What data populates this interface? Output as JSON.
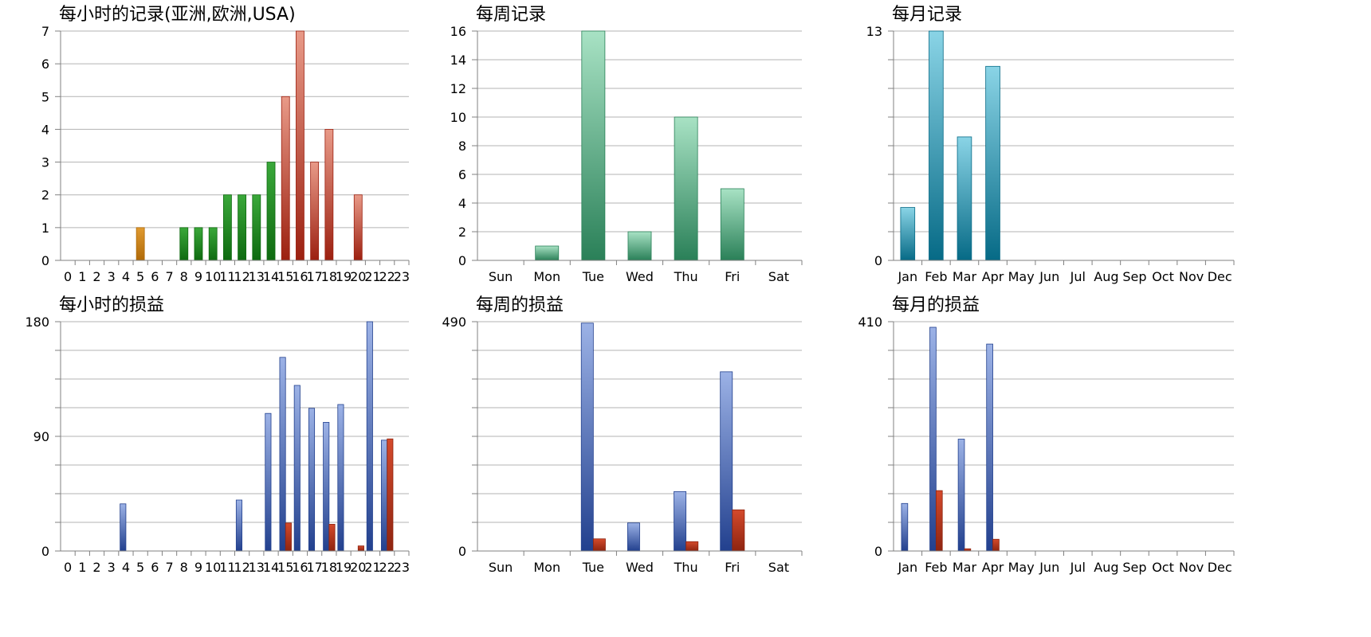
{
  "colors": {
    "grid": "#b3b3b3",
    "axis": "#808080",
    "orange": "#c07a10",
    "green": "#1b7d1b",
    "red": "#b23a28",
    "teal_green": "#2e8b5e",
    "teal": "#1f8ba6",
    "blue": "#3a5aa8",
    "dark_red": "#a8301c"
  },
  "chart_data": [
    {
      "type": "bar",
      "title": "每小时的记录(亚洲,欧洲,USA)",
      "categories": [
        "0",
        "1",
        "2",
        "3",
        "4",
        "5",
        "6",
        "7",
        "8",
        "9",
        "10",
        "11",
        "12",
        "13",
        "14",
        "15",
        "16",
        "17",
        "18",
        "19",
        "20",
        "21",
        "22",
        "23"
      ],
      "values": [
        0,
        0,
        0,
        0,
        0,
        1,
        0,
        0,
        1,
        1,
        1,
        2,
        2,
        2,
        3,
        5,
        7,
        3,
        4,
        0,
        2,
        0,
        0,
        0
      ],
      "bar_regions": [
        "orange",
        "orange",
        "orange",
        "orange",
        "orange",
        "orange",
        "orange",
        "orange",
        "green",
        "green",
        "green",
        "green",
        "green",
        "green",
        "green",
        "red",
        "red",
        "red",
        "red",
        "red",
        "red",
        "red",
        "red",
        "red"
      ],
      "ylim": [
        0,
        7
      ],
      "yticks": [
        "0",
        "1",
        "2",
        "3",
        "4",
        "5",
        "6",
        "7"
      ],
      "grid": true
    },
    {
      "type": "bar",
      "title": "每周记录",
      "categories": [
        "Sun",
        "Mon",
        "Tue",
        "Wed",
        "Thu",
        "Fri",
        "Sat"
      ],
      "values": [
        0,
        1,
        16,
        2,
        10,
        5,
        0
      ],
      "ylim": [
        0,
        16
      ],
      "yticks": [
        "0",
        "2",
        "4",
        "6",
        "8",
        "10",
        "12",
        "14",
        "16"
      ],
      "grid": true
    },
    {
      "type": "bar",
      "title": "每月记录",
      "categories": [
        "Jan",
        "Feb",
        "Mar",
        "Apr",
        "May",
        "Jun",
        "Jul",
        "Aug",
        "Sep",
        "Oct",
        "Nov",
        "Dec"
      ],
      "values": [
        3,
        13,
        7,
        11,
        0,
        0,
        0,
        0,
        0,
        0,
        0,
        0
      ],
      "ylim": [
        0,
        13
      ],
      "yticks": [
        "0",
        "",
        "",
        "",
        "",
        "",
        "",
        "",
        "13"
      ],
      "grid": true
    },
    {
      "type": "bar",
      "title": "每小时的损益",
      "categories": [
        "0",
        "1",
        "2",
        "3",
        "4",
        "5",
        "6",
        "7",
        "8",
        "9",
        "10",
        "11",
        "12",
        "13",
        "14",
        "15",
        "16",
        "17",
        "18",
        "19",
        "20",
        "21",
        "22",
        "23"
      ],
      "series": [
        {
          "values": [
            0,
            0,
            0,
            0,
            37,
            0,
            0,
            0,
            0,
            0,
            0,
            0,
            40,
            0,
            108,
            152,
            130,
            112,
            101,
            115,
            0,
            180,
            87,
            0
          ]
        },
        {
          "values": [
            0,
            0,
            0,
            0,
            0,
            0,
            0,
            0,
            0,
            0,
            0,
            0,
            0,
            0,
            0,
            22,
            0,
            0,
            21,
            0,
            4,
            0,
            88,
            0
          ]
        }
      ],
      "ylim": [
        0,
        180
      ],
      "yticks": [
        "0",
        "",
        "",
        "",
        "90",
        "",
        "",
        "",
        "180"
      ],
      "grid": true
    },
    {
      "type": "bar",
      "title": "每周的损益",
      "categories": [
        "Sun",
        "Mon",
        "Tue",
        "Wed",
        "Thu",
        "Fri",
        "Sat"
      ],
      "series": [
        {
          "values": [
            0,
            0,
            487,
            60,
            127,
            383,
            0
          ]
        },
        {
          "values": [
            0,
            0,
            26,
            0,
            20,
            88,
            0
          ]
        }
      ],
      "ylim": [
        0,
        490
      ],
      "yticks": [
        "0",
        "",
        "",
        "",
        "",
        "",
        "",
        "",
        "490"
      ],
      "grid": true
    },
    {
      "type": "bar",
      "title": "每月的损益",
      "categories": [
        "Jan",
        "Feb",
        "Mar",
        "Apr",
        "May",
        "Jun",
        "Jul",
        "Aug",
        "Sep",
        "Oct",
        "Nov",
        "Dec"
      ],
      "series": [
        {
          "values": [
            85,
            400,
            200,
            370,
            0,
            0,
            0,
            0,
            0,
            0,
            0,
            0
          ]
        },
        {
          "values": [
            0,
            108,
            4,
            21,
            0,
            0,
            0,
            0,
            0,
            0,
            0,
            0
          ]
        }
      ],
      "ylim": [
        0,
        410
      ],
      "yticks": [
        "0",
        "",
        "",
        "",
        "",
        "",
        "",
        "",
        "410"
      ],
      "grid": true
    }
  ]
}
